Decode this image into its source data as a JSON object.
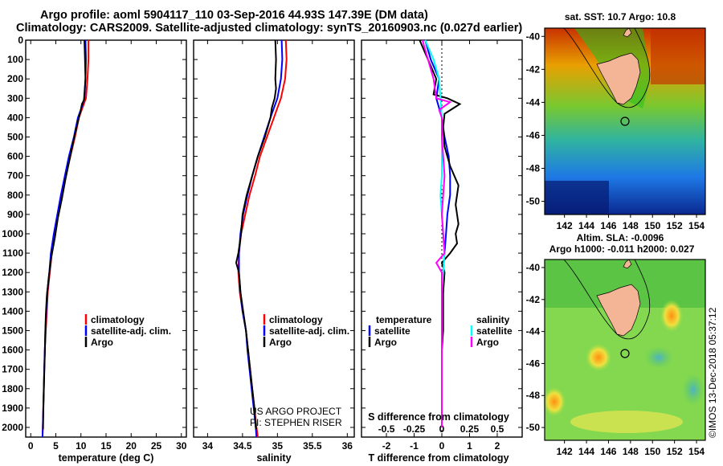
{
  "title_line1": "Argo profile: aoml 5904117_110 03-Sep-2016 44.93S 147.39E (DM data)",
  "title_line2": "Climatology: CARS2009. Satellite-adjusted climatology: synTS_20160903.nc (0.027d earlier)",
  "colors": {
    "climatology": "#ff0000",
    "satellite": "#0000ff",
    "argo": "#000000",
    "sat_salinity": "#00ffff",
    "argo_salinity": "#ff00ff"
  },
  "depth_ticks": [
    "0",
    "100",
    "200",
    "300",
    "400",
    "500",
    "600",
    "700",
    "800",
    "900",
    "1000",
    "1100",
    "1200",
    "1300",
    "1400",
    "1500",
    "1600",
    "1700",
    "1800",
    "1900",
    "2000"
  ],
  "chart_data": [
    {
      "type": "line",
      "xlabel": "temperature (deg C)",
      "xlim": [
        -1,
        31
      ],
      "ylim": [
        0,
        2050
      ],
      "x_ticks": [
        "0",
        "5",
        "10",
        "15",
        "20",
        "25",
        "30"
      ],
      "legend": [
        "climatology",
        "satellite-adj. clim.",
        "Argo"
      ],
      "series": [
        {
          "name": "climatology",
          "points": [
            [
              11.5,
              0
            ],
            [
              11.5,
              100
            ],
            [
              11.3,
              200
            ],
            [
              11.0,
              300
            ],
            [
              10.3,
              350
            ],
            [
              9.6,
              400
            ],
            [
              8.8,
              500
            ],
            [
              7.9,
              600
            ],
            [
              7.0,
              700
            ],
            [
              6.3,
              800
            ],
            [
              5.5,
              900
            ],
            [
              4.8,
              1000
            ],
            [
              4.2,
              1100
            ],
            [
              3.8,
              1200
            ],
            [
              3.4,
              1300
            ],
            [
              3.2,
              1400
            ],
            [
              3.0,
              1500
            ],
            [
              2.8,
              1600
            ],
            [
              2.7,
              1700
            ],
            [
              2.6,
              1800
            ],
            [
              2.5,
              1900
            ],
            [
              2.4,
              2000
            ],
            [
              2.35,
              2050
            ]
          ]
        },
        {
          "name": "satellite-adj. clim.",
          "points": [
            [
              10.9,
              0
            ],
            [
              11.0,
              100
            ],
            [
              10.9,
              200
            ],
            [
              10.7,
              300
            ],
            [
              10.1,
              350
            ],
            [
              9.4,
              400
            ],
            [
              8.6,
              500
            ],
            [
              7.6,
              600
            ],
            [
              6.8,
              700
            ],
            [
              6.0,
              800
            ],
            [
              5.3,
              900
            ],
            [
              4.6,
              1000
            ],
            [
              4.0,
              1100
            ],
            [
              3.7,
              1200
            ],
            [
              3.3,
              1300
            ],
            [
              3.1,
              1400
            ],
            [
              2.9,
              1500
            ],
            [
              2.8,
              1600
            ],
            [
              2.7,
              1700
            ],
            [
              2.6,
              1800
            ],
            [
              2.5,
              1900
            ],
            [
              2.4,
              2000
            ],
            [
              2.35,
              2050
            ]
          ]
        },
        {
          "name": "Argo",
          "points": [
            [
              10.7,
              0
            ],
            [
              10.8,
              100
            ],
            [
              10.9,
              200
            ],
            [
              10.6,
              310
            ],
            [
              10.2,
              330
            ],
            [
              9.9,
              370
            ],
            [
              9.4,
              420
            ],
            [
              8.5,
              520
            ],
            [
              7.7,
              620
            ],
            [
              6.9,
              720
            ],
            [
              6.2,
              820
            ],
            [
              5.4,
              920
            ],
            [
              4.8,
              1020
            ],
            [
              4.1,
              1120
            ],
            [
              3.6,
              1220
            ],
            [
              3.2,
              1320
            ],
            [
              3.0,
              1420
            ],
            [
              2.9,
              1520
            ],
            [
              2.8,
              1620
            ],
            [
              2.7,
              1720
            ],
            [
              2.6,
              1820
            ],
            [
              2.5,
              1920
            ],
            [
              2.45,
              2010
            ]
          ]
        }
      ]
    },
    {
      "type": "line",
      "xlabel": "salinity",
      "xlim": [
        33.8,
        36.1
      ],
      "ylim": [
        0,
        2050
      ],
      "x_ticks": [
        "34",
        "34.5",
        "35",
        "35.5",
        "36"
      ],
      "legend": [
        "climatology",
        "satellite-adj. clim.",
        "Argo"
      ],
      "annotation": [
        "US ARGO PROJECT",
        "PI: STEPHEN RISER"
      ],
      "series": [
        {
          "name": "climatology",
          "points": [
            [
              35.12,
              0
            ],
            [
              35.13,
              100
            ],
            [
              35.11,
              200
            ],
            [
              35.05,
              300
            ],
            [
              35.0,
              350
            ],
            [
              34.95,
              400
            ],
            [
              34.85,
              500
            ],
            [
              34.75,
              600
            ],
            [
              34.68,
              700
            ],
            [
              34.6,
              800
            ],
            [
              34.54,
              900
            ],
            [
              34.48,
              1000
            ],
            [
              34.45,
              1100
            ],
            [
              34.44,
              1200
            ],
            [
              34.46,
              1300
            ],
            [
              34.5,
              1400
            ],
            [
              34.55,
              1500
            ],
            [
              34.58,
              1600
            ],
            [
              34.61,
              1700
            ],
            [
              34.64,
              1800
            ],
            [
              34.67,
              1900
            ],
            [
              34.7,
              2000
            ],
            [
              34.72,
              2050
            ]
          ]
        },
        {
          "name": "satellite-adj. clim.",
          "points": [
            [
              35.06,
              0
            ],
            [
              35.07,
              100
            ],
            [
              35.05,
              200
            ],
            [
              35.0,
              300
            ],
            [
              34.95,
              350
            ],
            [
              34.9,
              400
            ],
            [
              34.81,
              500
            ],
            [
              34.72,
              600
            ],
            [
              34.64,
              700
            ],
            [
              34.57,
              800
            ],
            [
              34.51,
              900
            ],
            [
              34.47,
              1000
            ],
            [
              34.45,
              1100
            ],
            [
              34.45,
              1200
            ],
            [
              34.47,
              1300
            ],
            [
              34.5,
              1400
            ],
            [
              34.55,
              1500
            ],
            [
              34.57,
              1600
            ],
            [
              34.6,
              1700
            ],
            [
              34.63,
              1800
            ],
            [
              34.66,
              1900
            ],
            [
              34.69,
              2000
            ],
            [
              34.7,
              2050
            ]
          ]
        },
        {
          "name": "Argo",
          "points": [
            [
              34.97,
              0
            ],
            [
              34.98,
              100
            ],
            [
              34.97,
              200
            ],
            [
              34.98,
              250
            ],
            [
              34.96,
              300
            ],
            [
              34.92,
              350
            ],
            [
              34.9,
              400
            ],
            [
              34.82,
              500
            ],
            [
              34.72,
              600
            ],
            [
              34.64,
              700
            ],
            [
              34.56,
              800
            ],
            [
              34.5,
              900
            ],
            [
              34.48,
              1000
            ],
            [
              34.44,
              1100
            ],
            [
              34.41,
              1150
            ],
            [
              34.45,
              1200
            ],
            [
              34.47,
              1300
            ],
            [
              34.51,
              1400
            ],
            [
              34.55,
              1500
            ],
            [
              34.58,
              1600
            ],
            [
              34.61,
              1700
            ],
            [
              34.64,
              1800
            ],
            [
              34.67,
              1900
            ],
            [
              34.69,
              2000
            ],
            [
              34.7,
              2010
            ]
          ]
        }
      ]
    },
    {
      "type": "line",
      "xlabel": "T difference from climatology",
      "xlabel2": "S difference from climatology",
      "xlim": [
        -2.9,
        2.9
      ],
      "ylim": [
        0,
        2050
      ],
      "x_ticks": [
        "-2",
        "-1",
        "0",
        "1",
        "2"
      ],
      "x2_ticks": [
        "-0.5",
        "-0.25",
        "0",
        "0.25",
        "0.5"
      ],
      "legend_t": {
        "heading": "temperature",
        "items": [
          "satellite",
          "Argo"
        ]
      },
      "legend_s": {
        "heading": "salinity",
        "items": [
          "satellite",
          "Argo"
        ]
      },
      "series": [
        {
          "name": "temperature satellite",
          "points": [
            [
              -0.6,
              0
            ],
            [
              -0.4,
              100
            ],
            [
              -0.1,
              200
            ],
            [
              -0.2,
              300
            ],
            [
              0.0,
              400
            ],
            [
              0.1,
              500
            ],
            [
              0.25,
              600
            ],
            [
              0.3,
              700
            ],
            [
              0.3,
              800
            ],
            [
              0.2,
              900
            ],
            [
              0.15,
              1000
            ],
            [
              0.1,
              1100
            ],
            [
              0.05,
              1200
            ],
            [
              0.05,
              1300
            ],
            [
              0.0,
              1400
            ],
            [
              0.0,
              1500
            ],
            [
              0.0,
              1600
            ],
            [
              0.0,
              1700
            ],
            [
              0.0,
              1800
            ],
            [
              0.0,
              1900
            ],
            [
              0.0,
              2000
            ]
          ]
        },
        {
          "name": "temperature Argo",
          "points": [
            [
              -0.8,
              0
            ],
            [
              -0.5,
              100
            ],
            [
              -0.2,
              200
            ],
            [
              -0.3,
              280
            ],
            [
              0.2,
              300
            ],
            [
              0.65,
              330
            ],
            [
              0.1,
              380
            ],
            [
              0.05,
              450
            ],
            [
              0.1,
              550
            ],
            [
              0.3,
              650
            ],
            [
              0.45,
              700
            ],
            [
              0.6,
              750
            ],
            [
              0.5,
              850
            ],
            [
              0.6,
              950
            ],
            [
              0.5,
              1000
            ],
            [
              0.55,
              1050
            ],
            [
              0.3,
              1100
            ],
            [
              0.0,
              1150
            ],
            [
              0.1,
              1200
            ],
            [
              0.05,
              1300
            ],
            [
              0.05,
              1400
            ],
            [
              0.05,
              1500
            ],
            [
              0.0,
              1600
            ],
            [
              0.0,
              1700
            ],
            [
              0.0,
              1800
            ],
            [
              0.0,
              1900
            ],
            [
              0.0,
              2000
            ]
          ]
        },
        {
          "name": "salinity satellite",
          "points": [
            [
              -0.6,
              0
            ],
            [
              -0.3,
              100
            ],
            [
              -0.1,
              200
            ],
            [
              -0.05,
              300
            ],
            [
              0.0,
              400
            ],
            [
              0.0,
              500
            ],
            [
              0.0,
              600
            ],
            [
              0.0,
              700
            ],
            [
              -0.05,
              800
            ],
            [
              0.0,
              900
            ],
            [
              0.05,
              1000
            ],
            [
              0.1,
              1100
            ],
            [
              0.05,
              1200
            ],
            [
              0.0,
              1300
            ],
            [
              0.0,
              1400
            ],
            [
              0.0,
              1500
            ],
            [
              0.0,
              1600
            ],
            [
              0.0,
              1700
            ],
            [
              0.0,
              1800
            ],
            [
              0.0,
              1900
            ],
            [
              0.0,
              2000
            ]
          ]
        },
        {
          "name": "salinity Argo",
          "points": [
            [
              -0.7,
              0
            ],
            [
              -0.5,
              100
            ],
            [
              -0.3,
              200
            ],
            [
              -0.2,
              300
            ],
            [
              0.3,
              320
            ],
            [
              -0.1,
              360
            ],
            [
              0.0,
              400
            ],
            [
              0.0,
              500
            ],
            [
              0.05,
              600
            ],
            [
              0.1,
              700
            ],
            [
              0.05,
              800
            ],
            [
              0.0,
              900
            ],
            [
              0.05,
              1000
            ],
            [
              0.1,
              1100
            ],
            [
              -0.2,
              1150
            ],
            [
              0.0,
              1200
            ],
            [
              0.0,
              1300
            ],
            [
              0.0,
              1400
            ],
            [
              0.0,
              1500
            ],
            [
              0.0,
              1600
            ],
            [
              0.0,
              1700
            ],
            [
              0.0,
              1800
            ],
            [
              0.0,
              1900
            ],
            [
              0.0,
              2000
            ]
          ]
        }
      ]
    }
  ],
  "map_sst": {
    "title": "sat. SST: 10.7 Argo: 10.8",
    "lat_ticks": [
      "-40",
      "-42",
      "-44",
      "-46",
      "-48",
      "-50"
    ],
    "lon_ticks": [
      "142",
      "144",
      "146",
      "148",
      "150",
      "152",
      "154"
    ],
    "lat_range": [
      -50.8,
      -39.5
    ],
    "lon_range": [
      140.2,
      154.8
    ],
    "argo_position": {
      "lon": 147.39,
      "lat": -44.93
    }
  },
  "map_sla": {
    "title": "Altim. SLA: -0.0096",
    "subtitle": "Argo h1000: -0.011 h2000: 0.027",
    "lat_ticks": [
      "-40",
      "-42",
      "-44",
      "-46",
      "-48",
      "-50"
    ],
    "lon_ticks": [
      "142",
      "144",
      "146",
      "148",
      "150",
      "152",
      "154"
    ],
    "lat_range": [
      -50.8,
      -39.5
    ],
    "lon_range": [
      140.2,
      154.8
    ],
    "argo_position": {
      "lon": 147.39,
      "lat": -44.93
    }
  },
  "watermark": "©IMOS 13-Dec-2018 05:37:12"
}
